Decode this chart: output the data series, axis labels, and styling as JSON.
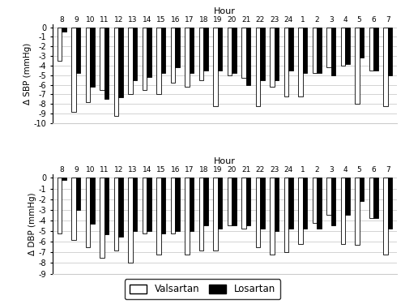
{
  "hours": [
    "8",
    "9",
    "10",
    "11",
    "12",
    "13",
    "14",
    "15",
    "16",
    "17",
    "18",
    "19",
    "20",
    "21",
    "22",
    "23",
    "24",
    "1",
    "2",
    "3",
    "4",
    "5",
    "6",
    "7"
  ],
  "sbp_valsartan": [
    -3.5,
    -8.8,
    -7.8,
    -6.5,
    -9.2,
    -7.0,
    -6.5,
    -7.0,
    -5.8,
    -6.2,
    -5.5,
    -8.2,
    -5.0,
    -5.3,
    -8.2,
    -6.2,
    -7.2,
    -7.2,
    -4.8,
    -4.2,
    -4.0,
    -8.0,
    -4.5,
    -8.2
  ],
  "sbp_losartan": [
    -0.5,
    -4.8,
    -6.2,
    -7.5,
    -7.3,
    -5.5,
    -5.2,
    -4.8,
    -4.2,
    -4.8,
    -4.5,
    -4.5,
    -4.8,
    -6.0,
    -5.5,
    -5.5,
    -4.5,
    -4.8,
    -4.8,
    -5.0,
    -3.8,
    -3.2,
    -4.5,
    -5.0
  ],
  "dbp_valsartan": [
    -5.2,
    -5.8,
    -6.5,
    -7.5,
    -6.8,
    -8.0,
    -5.2,
    -7.2,
    -5.2,
    -7.2,
    -6.8,
    -6.8,
    -4.5,
    -4.8,
    -6.5,
    -7.2,
    -7.0,
    -6.2,
    -4.2,
    -3.5,
    -6.2,
    -6.3,
    -3.8,
    -7.2
  ],
  "dbp_losartan": [
    -0.2,
    -3.0,
    -4.3,
    -5.3,
    -5.5,
    -5.0,
    -5.0,
    -5.2,
    -5.0,
    -5.0,
    -4.5,
    -4.8,
    -4.5,
    -4.5,
    -4.8,
    -5.0,
    -4.8,
    -4.8,
    -4.8,
    -4.5,
    -3.5,
    -2.2,
    -3.8,
    -4.8
  ],
  "sbp_ylim": [
    -10,
    0.3
  ],
  "dbp_ylim": [
    -9,
    0.3
  ],
  "sbp_yticks": [
    0,
    -1,
    -2,
    -3,
    -4,
    -5,
    -6,
    -7,
    -8,
    -9,
    -10
  ],
  "dbp_yticks": [
    0,
    -1,
    -2,
    -3,
    -4,
    -5,
    -6,
    -7,
    -8,
    -9
  ],
  "color_valsartan": "#ffffff",
  "color_losartan": "#000000",
  "edgecolor": "#000000",
  "bar_width": 0.32,
  "color_valsartan_label": "Valsartan",
  "color_losartan_label": "Losartan",
  "sbp_ylabel": "Δ SBP (mmHg)",
  "dbp_ylabel": "Δ DBP (mmHg)",
  "xlabel_top": "Hour",
  "grid_color": "#cccccc",
  "bg_color": "#ffffff"
}
